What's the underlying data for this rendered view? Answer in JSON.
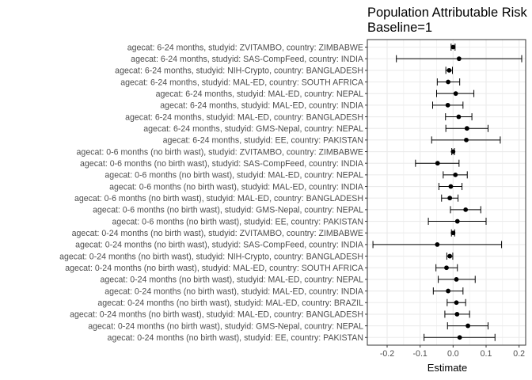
{
  "chart_data": {
    "type": "forest",
    "title": "Population Attributable Risk",
    "subtitle": "Baseline=1",
    "xlabel": "Estimate",
    "ylabel": "",
    "xlim": [
      -0.26,
      0.22
    ],
    "x_ticks": [
      -0.2,
      -0.1,
      0.0,
      0.1,
      0.2
    ],
    "x_tick_labels": [
      "-0.2",
      "-0.1",
      "0.0",
      "0.1",
      "0.2"
    ],
    "grid": true,
    "colors": {
      "background": "#ffffff",
      "grid": "#ebebeb",
      "border": "#333333",
      "point": "#000000",
      "text": "#4d4d4d"
    },
    "rows": [
      {
        "label": "agecat: 6-24 months, studyid: ZVITAMBO, country: ZIMBABWE",
        "estimate": 0.0,
        "lower": -0.006,
        "upper": 0.006
      },
      {
        "label": "agecat: 6-24 months, studyid: SAS-CompFeed, country: INDIA",
        "estimate": 0.018,
        "lower": -0.172,
        "upper": 0.208
      },
      {
        "label": "agecat: 6-24 months, studyid: NIH-Crypto, country: BANGLADESH",
        "estimate": -0.012,
        "lower": -0.022,
        "upper": -0.002
      },
      {
        "label": "agecat: 6-24 months, studyid: MAL-ED, country: SOUTH AFRICA",
        "estimate": -0.015,
        "lower": -0.048,
        "upper": 0.02
      },
      {
        "label": "agecat: 6-24 months, studyid: MAL-ED, country: NEPAL",
        "estimate": 0.008,
        "lower": -0.05,
        "upper": 0.063
      },
      {
        "label": "agecat: 6-24 months, studyid: MAL-ED, country: INDIA",
        "estimate": -0.016,
        "lower": -0.062,
        "upper": 0.03
      },
      {
        "label": "agecat: 6-24 months, studyid: MAL-ED, country: BANGLADESH",
        "estimate": 0.017,
        "lower": -0.023,
        "upper": 0.057
      },
      {
        "label": "agecat: 6-24 months, studyid: GMS-Nepal, country: NEPAL",
        "estimate": 0.042,
        "lower": -0.022,
        "upper": 0.106
      },
      {
        "label": "agecat: 6-24 months, studyid: EE, country: PAKISTAN",
        "estimate": 0.04,
        "lower": -0.065,
        "upper": 0.143
      },
      {
        "label": "agecat: 0-6 months (no birth wast), studyid: ZVITAMBO, country: ZIMBABWE",
        "estimate": 0.0,
        "lower": -0.004,
        "upper": 0.004
      },
      {
        "label": "agecat: 0-6 months (no birth wast), studyid: SAS-CompFeed, country: INDIA",
        "estimate": -0.047,
        "lower": -0.114,
        "upper": 0.018
      },
      {
        "label": "agecat: 0-6 months (no birth wast), studyid: MAL-ED, country: NEPAL",
        "estimate": 0.007,
        "lower": -0.03,
        "upper": 0.043
      },
      {
        "label": "agecat: 0-6 months (no birth wast), studyid: MAL-ED, country: INDIA",
        "estimate": -0.007,
        "lower": -0.043,
        "upper": 0.027
      },
      {
        "label": "agecat: 0-6 months (no birth wast), studyid: MAL-ED, country: BANGLADESH",
        "estimate": -0.01,
        "lower": -0.035,
        "upper": 0.015
      },
      {
        "label": "agecat: 0-6 months (no birth wast), studyid: GMS-Nepal, country: NEPAL",
        "estimate": 0.038,
        "lower": -0.008,
        "upper": 0.084
      },
      {
        "label": "agecat: 0-6 months (no birth wast), studyid: EE, country: PAKISTAN",
        "estimate": 0.013,
        "lower": -0.075,
        "upper": 0.1
      },
      {
        "label": "agecat: 0-24 months (no birth wast), studyid: ZVITAMBO, country: ZIMBABWE",
        "estimate": 0.0,
        "lower": -0.005,
        "upper": 0.005
      },
      {
        "label": "agecat: 0-24 months (no birth wast), studyid: SAS-CompFeed, country: INDIA",
        "estimate": -0.048,
        "lower": -0.243,
        "upper": 0.147
      },
      {
        "label": "agecat: 0-24 months (no birth wast), studyid: NIH-Crypto, country: BANGLADESH",
        "estimate": -0.01,
        "lower": -0.019,
        "upper": -0.001
      },
      {
        "label": "agecat: 0-24 months (no birth wast), studyid: MAL-ED, country: SOUTH AFRICA",
        "estimate": -0.02,
        "lower": -0.052,
        "upper": 0.013
      },
      {
        "label": "agecat: 0-24 months (no birth wast), studyid: MAL-ED, country: NEPAL",
        "estimate": 0.01,
        "lower": -0.045,
        "upper": 0.067
      },
      {
        "label": "agecat: 0-24 months (no birth wast), studyid: MAL-ED, country: INDIA",
        "estimate": -0.015,
        "lower": -0.06,
        "upper": 0.03
      },
      {
        "label": "agecat: 0-24 months (no birth wast), studyid: MAL-ED, country: BRAZIL",
        "estimate": 0.01,
        "lower": -0.018,
        "upper": 0.038
      },
      {
        "label": "agecat: 0-24 months (no birth wast), studyid: MAL-ED, country: BANGLADESH",
        "estimate": 0.012,
        "lower": -0.025,
        "upper": 0.05
      },
      {
        "label": "agecat: 0-24 months (no birth wast), studyid: GMS-Nepal, country: NEPAL",
        "estimate": 0.045,
        "lower": -0.017,
        "upper": 0.106
      },
      {
        "label": "agecat: 0-24 months (no birth wast), studyid: EE, country: PAKISTAN",
        "estimate": 0.02,
        "lower": -0.088,
        "upper": 0.127
      }
    ]
  }
}
